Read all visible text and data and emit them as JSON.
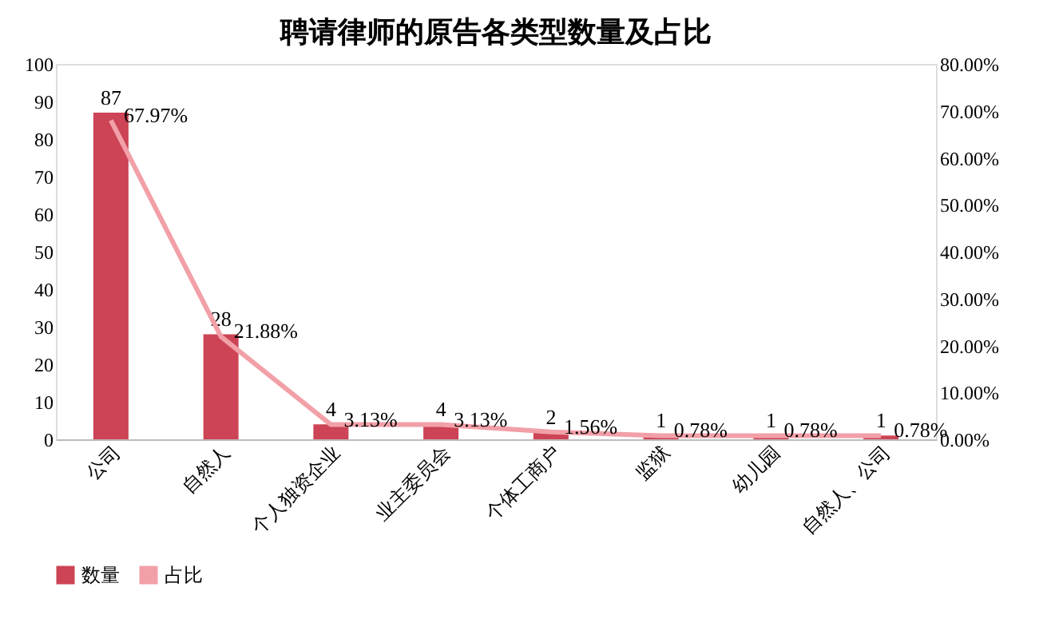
{
  "chart_data": {
    "type": "bar",
    "title": "聘请律师的原告各类型数量及占比",
    "categories": [
      "公司",
      "自然人",
      "个人独资企业",
      "业主委员会",
      "个体工商户",
      "监狱",
      "幼儿园",
      "自然人、公司"
    ],
    "series": [
      {
        "name": "数量",
        "color": "#cc4455",
        "values": [
          87,
          28,
          4,
          4,
          2,
          1,
          1,
          1
        ],
        "value_labels": [
          "87",
          "28",
          "4",
          "4",
          "2",
          "1",
          "1",
          "1"
        ]
      },
      {
        "name": "占比",
        "type": "line",
        "axis": "y2",
        "color": "#f2a0a8",
        "values": [
          67.97,
          21.88,
          3.13,
          3.13,
          1.56,
          0.78,
          0.78,
          0.78
        ],
        "value_labels": [
          "67.97%",
          "21.88%",
          "3.13%",
          "3.13%",
          "1.56%",
          "0.78%",
          "0.78%",
          "0.78%"
        ]
      }
    ],
    "ylim": [
      0,
      100
    ],
    "yticks": [
      0,
      10,
      20,
      30,
      40,
      50,
      60,
      70,
      80,
      90,
      100
    ],
    "y2lim": [
      0,
      80
    ],
    "y2ticks": [
      {
        "value": 0,
        "label": "0.00%"
      },
      {
        "value": 10,
        "label": "10.00%"
      },
      {
        "value": 20,
        "label": "20.00%"
      },
      {
        "value": 30,
        "label": "30.00%"
      },
      {
        "value": 40,
        "label": "40.00%"
      },
      {
        "value": 50,
        "label": "50.00%"
      },
      {
        "value": 60,
        "label": "60.00%"
      },
      {
        "value": 70,
        "label": "70.00%"
      },
      {
        "value": 80,
        "label": "80.00%"
      }
    ],
    "grid": false,
    "legend": "bottom",
    "marker": "none",
    "line_style": "solid"
  }
}
